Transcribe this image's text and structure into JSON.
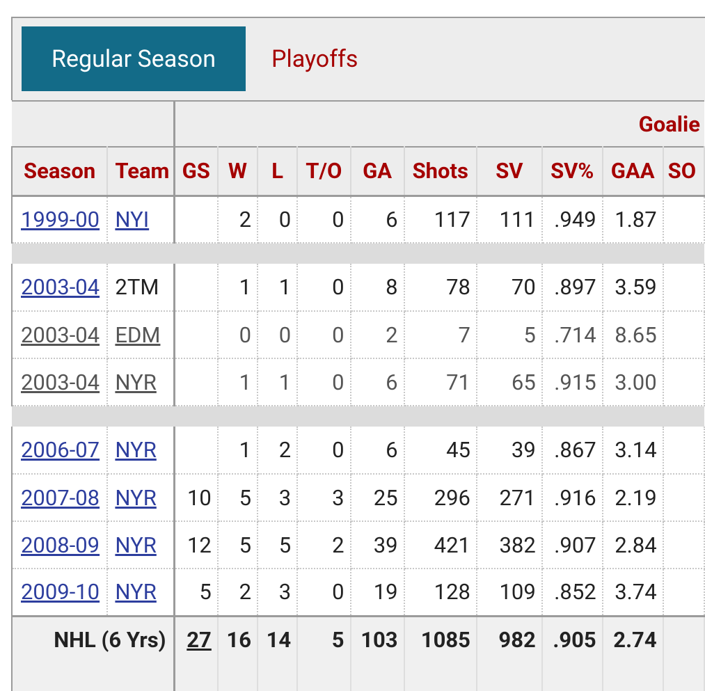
{
  "tabs": {
    "regular": "Regular Season",
    "playoffs": "Playoffs"
  },
  "group_header": "Goalie",
  "columns": [
    "Season",
    "Team",
    "GS",
    "W",
    "L",
    "T/O",
    "GA",
    "Shots",
    "SV",
    "SV%",
    "GAA",
    "SO"
  ],
  "rows": [
    {
      "season": "1999-00",
      "team": "NYI",
      "gs": "",
      "w": "2",
      "l": "0",
      "to": "0",
      "ga": "6",
      "shots": "117",
      "sv": "111",
      "svp": ".949",
      "gaa": "1.87"
    },
    {
      "season": "2003-04",
      "team": "2TM",
      "gs": "",
      "w": "1",
      "l": "1",
      "to": "0",
      "ga": "8",
      "shots": "78",
      "sv": "70",
      "svp": ".897",
      "gaa": "3.59"
    },
    {
      "season": "2003-04",
      "team": "EDM",
      "gs": "",
      "w": "0",
      "l": "0",
      "to": "0",
      "ga": "2",
      "shots": "7",
      "sv": "5",
      "svp": ".714",
      "gaa": "8.65"
    },
    {
      "season": "2003-04",
      "team": "NYR",
      "gs": "",
      "w": "1",
      "l": "1",
      "to": "0",
      "ga": "6",
      "shots": "71",
      "sv": "65",
      "svp": ".915",
      "gaa": "3.00"
    },
    {
      "season": "2006-07",
      "team": "NYR",
      "gs": "",
      "w": "1",
      "l": "2",
      "to": "0",
      "ga": "6",
      "shots": "45",
      "sv": "39",
      "svp": ".867",
      "gaa": "3.14"
    },
    {
      "season": "2007-08",
      "team": "NYR",
      "gs": "10",
      "w": "5",
      "l": "3",
      "to": "3",
      "ga": "25",
      "shots": "296",
      "sv": "271",
      "svp": ".916",
      "gaa": "2.19"
    },
    {
      "season": "2008-09",
      "team": "NYR",
      "gs": "12",
      "w": "5",
      "l": "5",
      "to": "2",
      "ga": "39",
      "shots": "421",
      "sv": "382",
      "svp": ".907",
      "gaa": "2.84"
    },
    {
      "season": "2009-10",
      "team": "NYR",
      "gs": "5",
      "w": "2",
      "l": "3",
      "to": "0",
      "ga": "19",
      "shots": "128",
      "sv": "109",
      "svp": ".852",
      "gaa": "3.74"
    }
  ],
  "total": {
    "label": "NHL (6 Yrs)",
    "gs": "27",
    "w": "16",
    "l": "14",
    "to": "5",
    "ga": "103",
    "shots": "1085",
    "sv": "982",
    "svp": ".905",
    "gaa": "2.74"
  },
  "partial": {
    "label": "",
    "gs": "",
    "w": "",
    "l": "",
    "to": "",
    "ga": "",
    "shots": "",
    "sv": "",
    "svp": "",
    "gaa": ""
  }
}
